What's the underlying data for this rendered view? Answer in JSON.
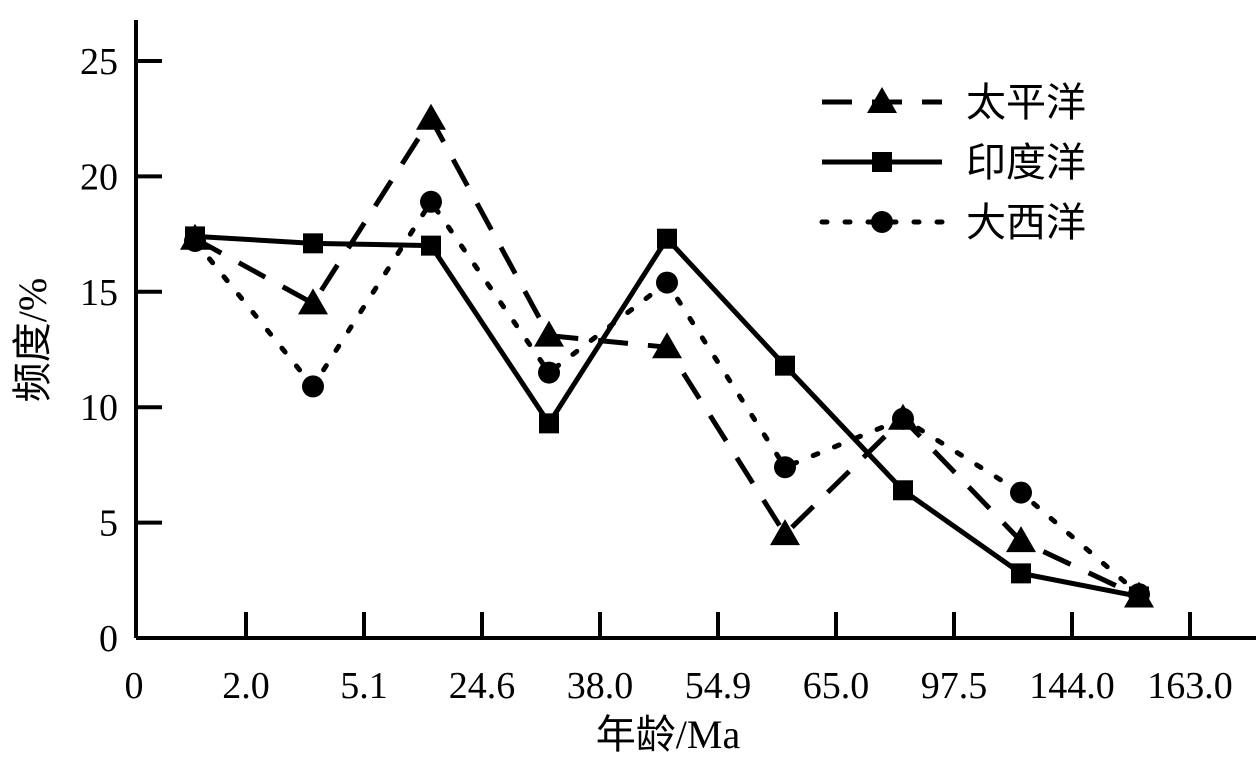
{
  "chart_data": {
    "type": "line",
    "xlabel": "年龄/Ma",
    "ylabel": "频度/%",
    "origin_label": "0",
    "x_ticks": [
      "2.0",
      "5.1",
      "24.6",
      "38.0",
      "54.9",
      "65.0",
      "97.5",
      "144.0",
      "163.0"
    ],
    "x_points": [
      1,
      2,
      3,
      4,
      5,
      6,
      7,
      8,
      9
    ],
    "ylim": [
      0,
      25
    ],
    "y_ticks": [
      0,
      5,
      10,
      15,
      20,
      25
    ],
    "grid": false,
    "legend_position": "top-right",
    "series": [
      {
        "name": "太平洋",
        "line_style": "dashed",
        "marker": "triangle",
        "values": [
          17.3,
          14.5,
          22.5,
          13.1,
          12.6,
          4.5,
          9.5,
          4.2,
          1.8
        ]
      },
      {
        "name": "印度洋",
        "line_style": "solid",
        "marker": "square",
        "values": [
          17.4,
          17.1,
          17.0,
          9.3,
          17.3,
          11.8,
          6.4,
          2.8,
          1.8
        ]
      },
      {
        "name": "大西洋",
        "line_style": "dotted",
        "marker": "circle",
        "values": [
          17.2,
          10.9,
          18.9,
          11.5,
          15.4,
          7.4,
          9.5,
          6.3,
          1.9
        ]
      }
    ]
  }
}
